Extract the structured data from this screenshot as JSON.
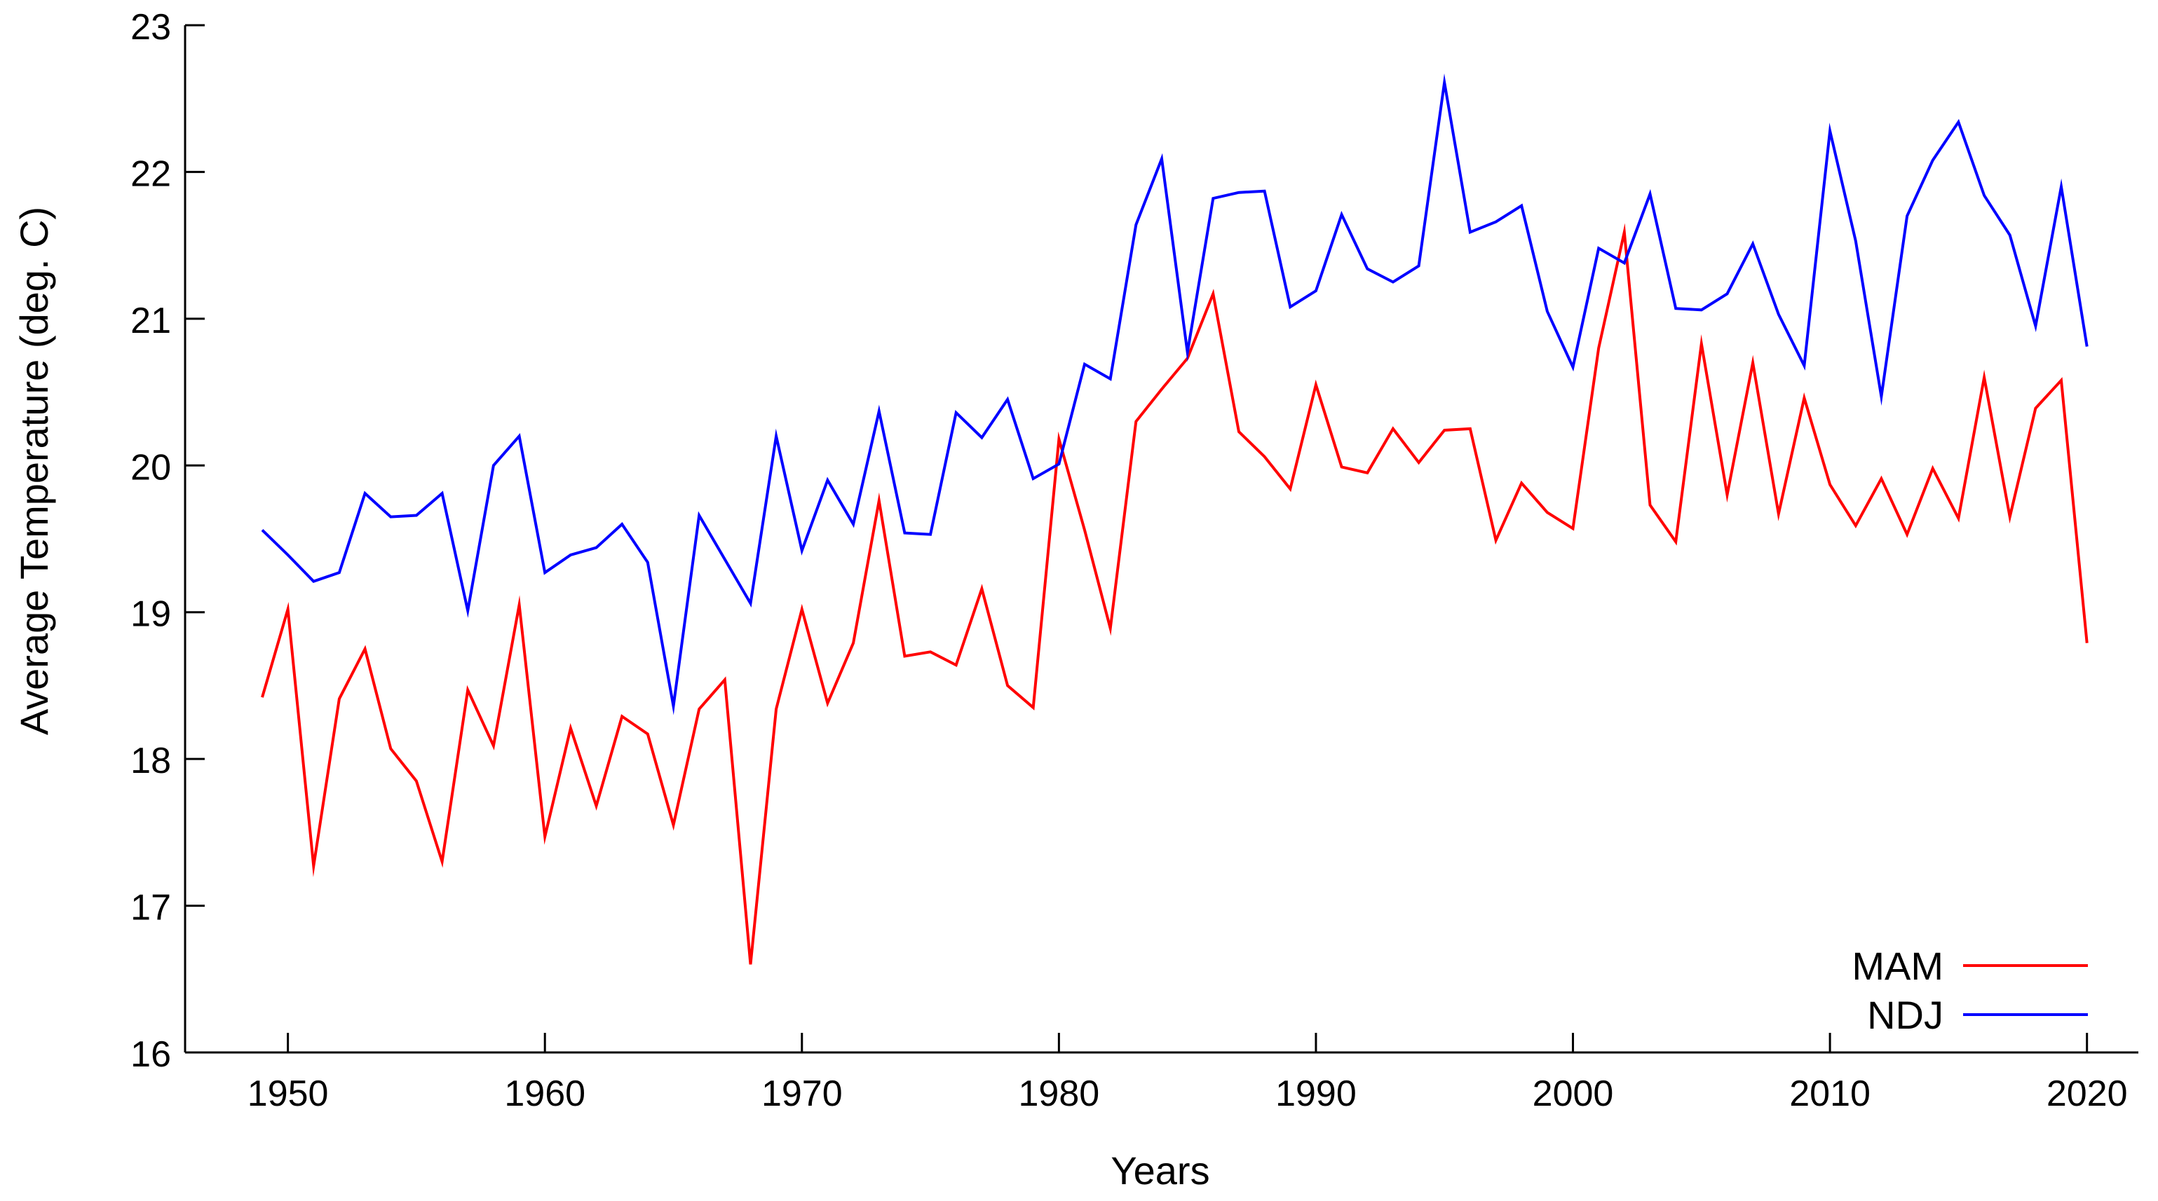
{
  "chart_data": {
    "type": "line",
    "title": "",
    "xlabel": "Years",
    "ylabel": "Average Temperature (deg. C)",
    "xlim": [
      1946,
      2022
    ],
    "ylim": [
      16,
      23
    ],
    "xticks": [
      1950,
      1960,
      1970,
      1980,
      1990,
      2000,
      2010,
      2020
    ],
    "yticks": [
      16,
      17,
      18,
      19,
      20,
      21,
      22,
      23
    ],
    "grid": false,
    "legend_position": "bottom-right",
    "x": [
      1949,
      1950,
      1951,
      1952,
      1953,
      1954,
      1955,
      1956,
      1957,
      1958,
      1959,
      1960,
      1961,
      1962,
      1963,
      1964,
      1965,
      1966,
      1967,
      1968,
      1969,
      1970,
      1971,
      1972,
      1973,
      1974,
      1975,
      1976,
      1977,
      1978,
      1979,
      1980,
      1981,
      1982,
      1983,
      1984,
      1985,
      1986,
      1987,
      1988,
      1989,
      1990,
      1991,
      1992,
      1993,
      1994,
      1995,
      1996,
      1997,
      1998,
      1999,
      2000,
      2001,
      2002,
      2003,
      2004,
      2005,
      2006,
      2007,
      2008,
      2009,
      2010,
      2011,
      2012,
      2013,
      2014,
      2015,
      2016,
      2017,
      2018,
      2019,
      2020
    ],
    "series": [
      {
        "name": "MAM",
        "color": "#ff0000",
        "values": [
          18.42,
          19.02,
          17.27,
          18.41,
          18.75,
          18.07,
          17.85,
          17.3,
          18.47,
          18.09,
          19.05,
          17.47,
          18.21,
          17.68,
          18.29,
          18.17,
          17.55,
          18.34,
          18.54,
          16.6,
          18.34,
          19.02,
          18.38,
          18.79,
          19.76,
          18.7,
          18.73,
          18.64,
          19.16,
          18.5,
          18.35,
          20.18,
          19.56,
          18.89,
          20.3,
          20.52,
          20.73,
          21.17,
          20.23,
          20.06,
          19.84,
          20.55,
          19.99,
          19.95,
          20.25,
          20.02,
          20.24,
          20.25,
          19.49,
          19.88,
          19.68,
          19.57,
          20.8,
          21.59,
          19.73,
          19.48,
          20.83,
          19.8,
          20.7,
          19.67,
          20.46,
          19.87,
          19.59,
          19.91,
          19.53,
          19.98,
          19.64,
          20.6,
          19.65,
          20.39,
          20.58,
          18.79
        ]
      },
      {
        "name": "NDJ",
        "color": "#0000ff",
        "values": [
          19.56,
          19.39,
          19.21,
          19.27,
          19.81,
          19.65,
          19.66,
          19.81,
          19.01,
          20.0,
          20.2,
          19.27,
          19.39,
          19.44,
          19.6,
          19.34,
          18.36,
          19.66,
          19.36,
          19.06,
          20.2,
          19.42,
          19.9,
          19.6,
          20.37,
          19.54,
          19.53,
          20.36,
          20.19,
          20.45,
          19.91,
          20.01,
          20.69,
          20.59,
          21.64,
          22.09,
          20.77,
          21.82,
          21.86,
          21.87,
          21.08,
          21.19,
          21.71,
          21.34,
          21.25,
          21.36,
          22.61,
          21.59,
          21.66,
          21.77,
          21.05,
          20.67,
          21.48,
          21.38,
          21.85,
          21.07,
          21.06,
          21.17,
          21.51,
          21.03,
          20.68,
          22.28,
          21.53,
          20.47,
          21.7,
          22.08,
          22.34,
          21.84,
          21.57,
          20.95,
          21.9,
          20.81
        ]
      }
    ]
  }
}
